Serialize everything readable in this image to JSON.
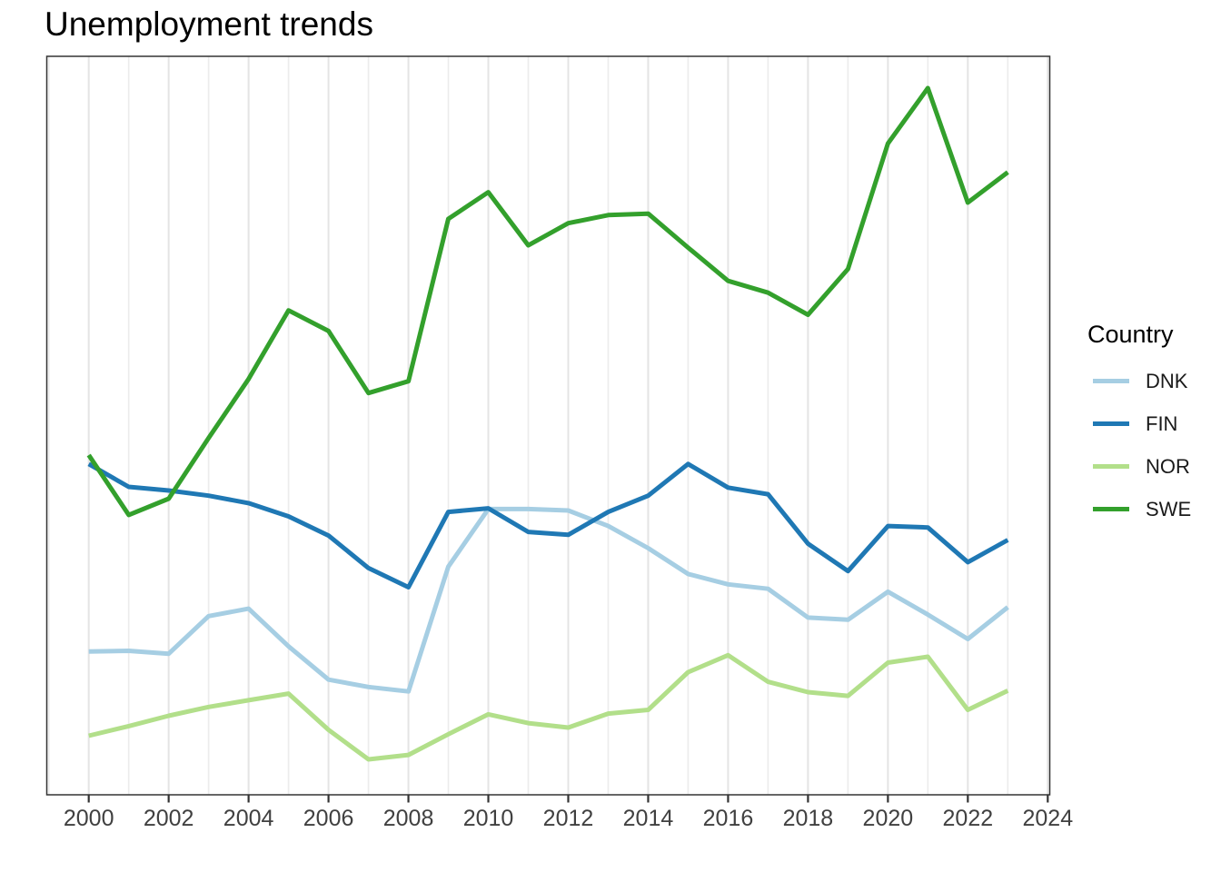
{
  "page": {
    "background": "#ffffff"
  },
  "style": {
    "panel_border_color": "#333333",
    "grid_major_color": "#e4e4e4",
    "grid_minor_color": "#ececec",
    "tick_color": "#333333",
    "axis_text_color": "#404040",
    "title_color": "#000000"
  },
  "chart_data": {
    "type": "line",
    "title": "Unemployment trends",
    "legend_title": "Country",
    "legend_position": "right",
    "xlabel": "",
    "ylabel": "",
    "grid": "vertical-only, one gridline per year",
    "x": [
      2000,
      2001,
      2002,
      2003,
      2004,
      2005,
      2006,
      2007,
      2008,
      2009,
      2010,
      2011,
      2012,
      2013,
      2014,
      2015,
      2016,
      2017,
      2018,
      2019,
      2020,
      2021,
      2022,
      2023
    ],
    "x_ticks": [
      2000,
      2002,
      2004,
      2006,
      2008,
      2010,
      2012,
      2014,
      2016,
      2018,
      2020,
      2022,
      2024
    ],
    "x_tick_labels": [
      "2000",
      "2002",
      "2004",
      "2006",
      "2008",
      "2010",
      "2012",
      "2014",
      "2016",
      "2018",
      "2020",
      "2022",
      "2024"
    ],
    "gridline_years": [
      1999,
      2000,
      2001,
      2002,
      2003,
      2004,
      2005,
      2006,
      2007,
      2008,
      2009,
      2010,
      2011,
      2012,
      2013,
      2014,
      2015,
      2016,
      2017,
      2018,
      2019,
      2020,
      2021,
      2022,
      2023,
      2024
    ],
    "xlim": [
      1998.95,
      2024.05
    ],
    "ylim": [
      0,
      10
    ],
    "y_tick_labels_shown": false,
    "series": [
      {
        "name": "DNK",
        "color": "#a6cee3",
        "values": [
          1.94,
          1.95,
          1.91,
          2.42,
          2.52,
          2.01,
          1.56,
          1.46,
          1.4,
          3.09,
          3.87,
          3.87,
          3.85,
          3.64,
          3.34,
          2.99,
          2.85,
          2.79,
          2.4,
          2.37,
          2.75,
          2.44,
          2.11,
          2.54
        ]
      },
      {
        "name": "FIN",
        "color": "#1f78b4",
        "values": [
          4.48,
          4.17,
          4.12,
          4.05,
          3.95,
          3.77,
          3.51,
          3.07,
          2.81,
          3.83,
          3.88,
          3.56,
          3.52,
          3.83,
          4.05,
          4.48,
          4.16,
          4.07,
          3.4,
          3.03,
          3.64,
          3.62,
          3.15,
          3.45
        ]
      },
      {
        "name": "NOR",
        "color": "#b2df8a",
        "values": [
          0.8,
          0.93,
          1.07,
          1.19,
          1.28,
          1.37,
          0.88,
          0.48,
          0.54,
          0.82,
          1.09,
          0.97,
          0.91,
          1.1,
          1.15,
          1.66,
          1.89,
          1.53,
          1.39,
          1.34,
          1.79,
          1.87,
          1.15,
          1.41
        ]
      },
      {
        "name": "SWE",
        "color": "#33a02c",
        "values": [
          4.6,
          3.79,
          4.01,
          4.83,
          5.63,
          6.56,
          6.28,
          5.44,
          5.6,
          7.8,
          8.16,
          7.44,
          7.74,
          7.85,
          7.87,
          7.41,
          6.96,
          6.8,
          6.5,
          7.12,
          8.82,
          9.57,
          8.02,
          8.43
        ]
      }
    ]
  }
}
